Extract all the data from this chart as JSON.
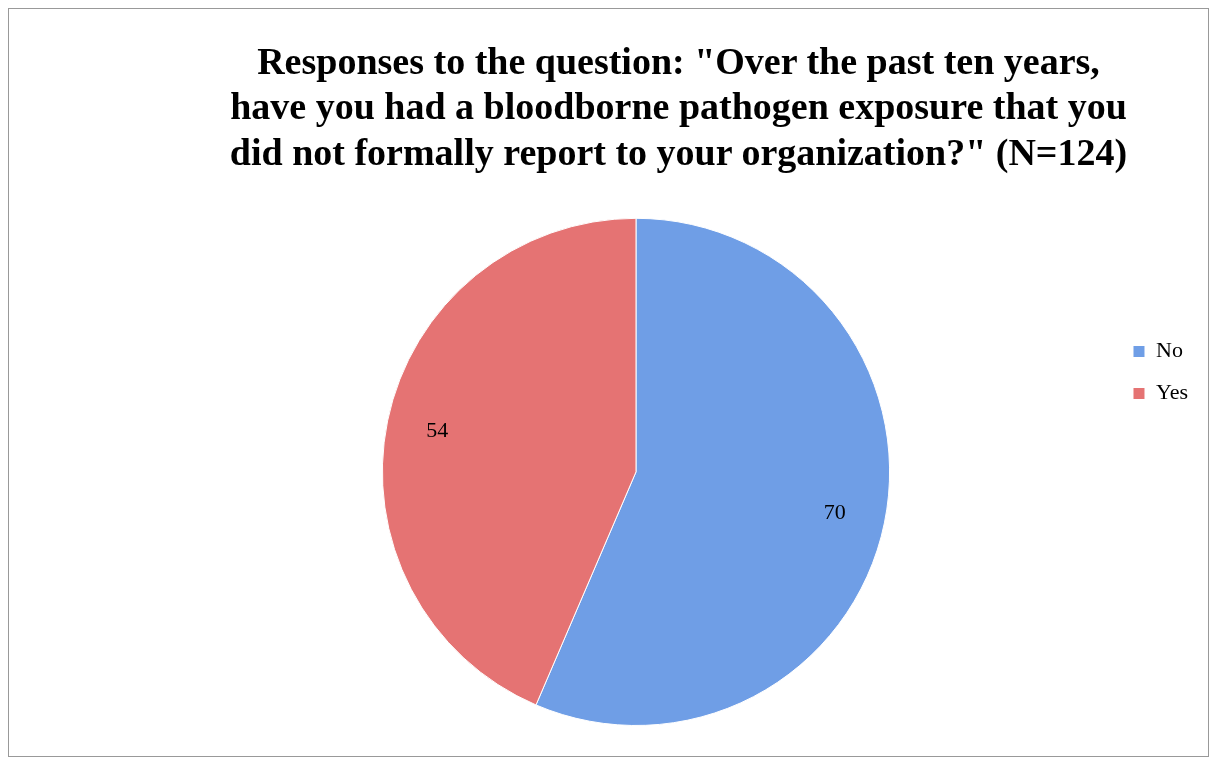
{
  "chart_data": {
    "type": "pie",
    "title": "Responses to the question: \"Over the past ten years, have you had a bloodborne pathogen exposure that you did not formally report to your organization?\" (N=124)",
    "categories": [
      "No",
      "Yes"
    ],
    "values": [
      70,
      54
    ],
    "colors": [
      "#6f9ee6",
      "#e57373"
    ],
    "data_labels": true,
    "legend": "right"
  }
}
